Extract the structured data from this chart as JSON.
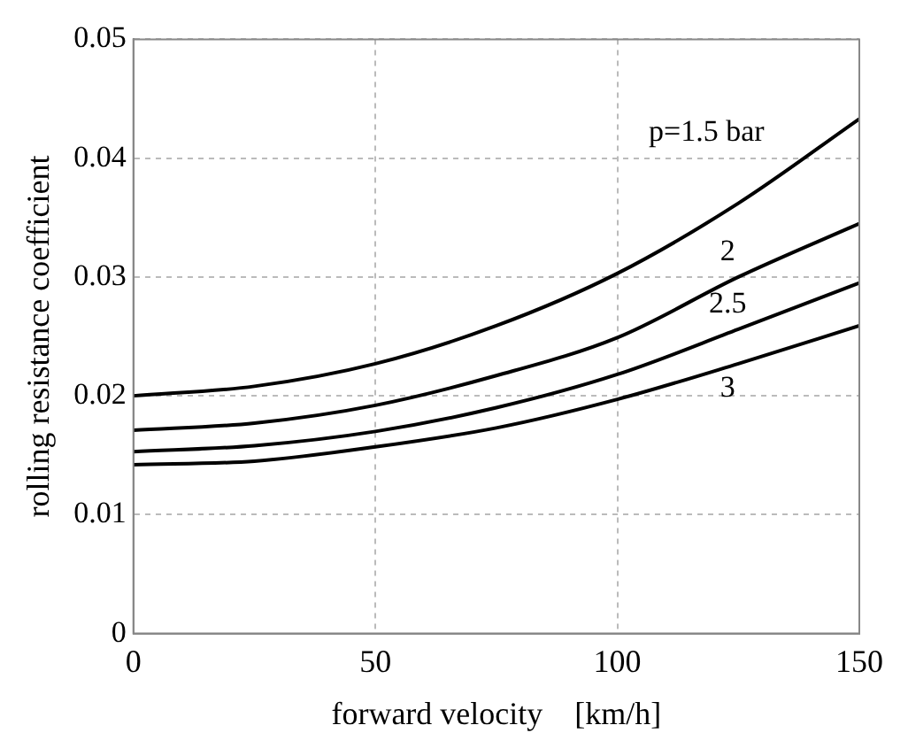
{
  "chart_data": {
    "type": "line",
    "xlabel": "forward velocity    [km/h]",
    "ylabel": "rolling resistance coefficient",
    "x": [
      0,
      25,
      50,
      75,
      100,
      125,
      150
    ],
    "series": [
      {
        "name": "p=1.5 bar",
        "color": "#000000",
        "values": [
          0.02,
          0.0208,
          0.0227,
          0.0259,
          0.0303,
          0.0362,
          0.0433
        ]
      },
      {
        "name": "2",
        "color": "#000000",
        "values": [
          0.0171,
          0.0177,
          0.0192,
          0.0217,
          0.0249,
          0.03,
          0.0345
        ]
      },
      {
        "name": "2.5",
        "color": "#000000",
        "values": [
          0.0153,
          0.0158,
          0.017,
          0.019,
          0.0218,
          0.0256,
          0.0295
        ]
      },
      {
        "name": "3",
        "color": "#000000",
        "values": [
          0.0142,
          0.0145,
          0.0157,
          0.0173,
          0.0197,
          0.0227,
          0.0259
        ]
      }
    ],
    "xlim": [
      0,
      150
    ],
    "xticks": [
      0,
      50,
      100,
      150
    ],
    "ylim": [
      0,
      0.05
    ],
    "yticks": [
      0,
      0.01,
      0.02,
      0.03,
      0.04,
      0.05
    ],
    "grid": true,
    "legend": false,
    "marker": "none",
    "line_style": "solid"
  }
}
